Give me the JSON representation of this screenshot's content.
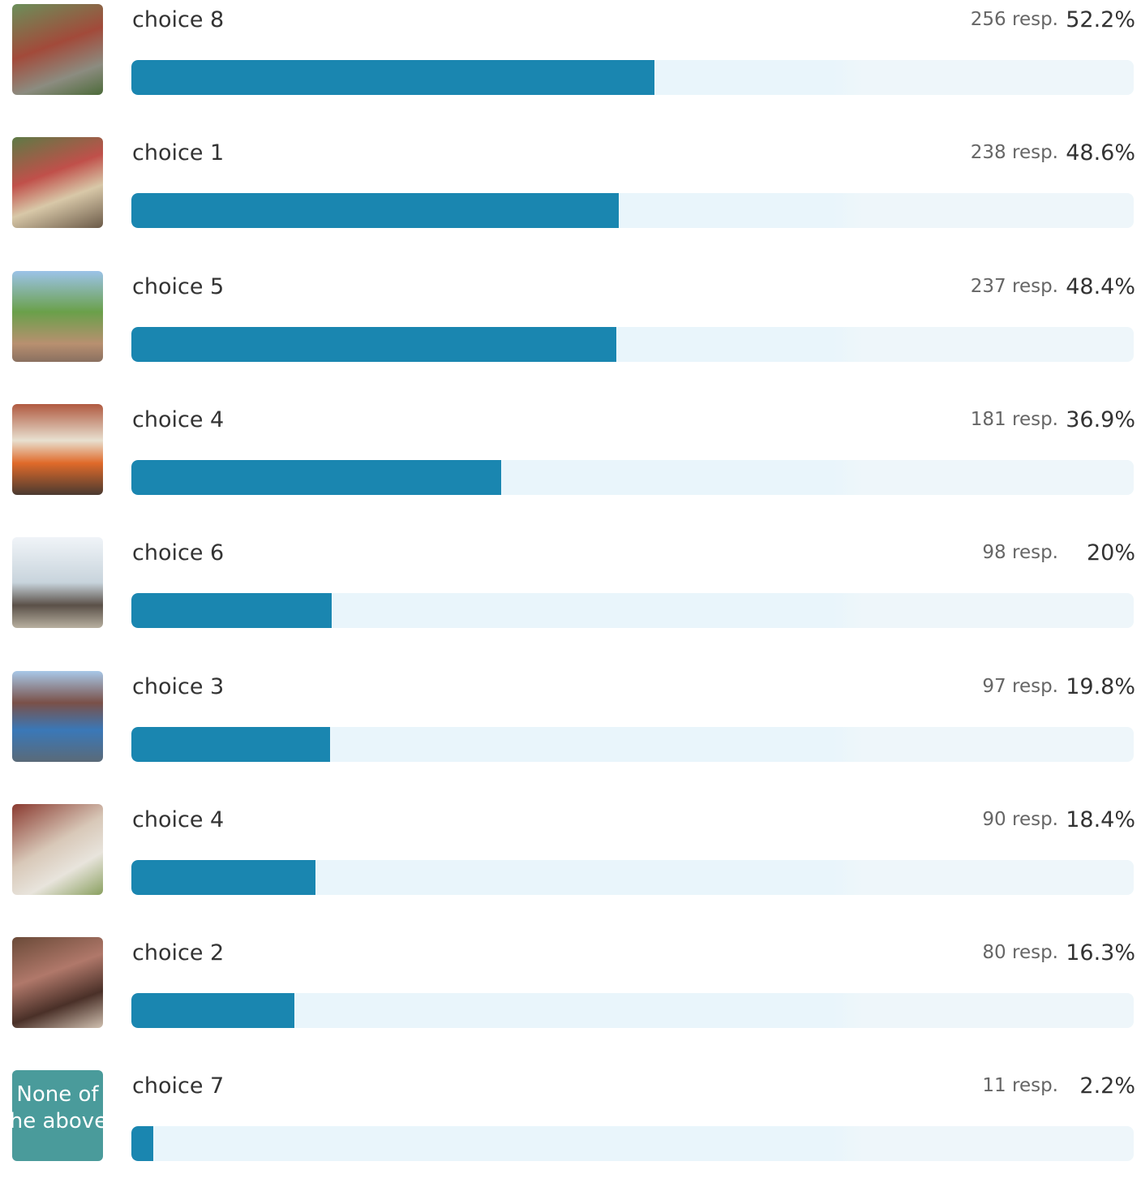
{
  "xlim": [
    0,
    100
  ],
  "items": [
    {
      "label": "choice 8",
      "responses": "256 resp.",
      "percent": 52.2,
      "percent_label": "52.2%"
    },
    {
      "label": "choice 1",
      "responses": "238 resp.",
      "percent": 48.6,
      "percent_label": "48.6%"
    },
    {
      "label": "choice 5",
      "responses": "237 resp.",
      "percent": 48.4,
      "percent_label": "48.4%"
    },
    {
      "label": "choice 4",
      "responses": "181 resp.",
      "percent": 36.9,
      "percent_label": "36.9%"
    },
    {
      "label": "choice 6",
      "responses": "98 resp.",
      "percent": 20,
      "percent_label": "20%"
    },
    {
      "label": "choice 3",
      "responses": "97 resp.",
      "percent": 19.8,
      "percent_label": "19.8%"
    },
    {
      "label": "choice 4",
      "responses": "90 resp.",
      "percent": 18.4,
      "percent_label": "18.4%"
    },
    {
      "label": "choice 2",
      "responses": "80 resp.",
      "percent": 16.3,
      "percent_label": "16.3%"
    },
    {
      "label": "choice 7",
      "responses": "11 resp.",
      "percent": 2.2,
      "percent_label": "2.2%",
      "image_text": "None of the above."
    }
  ]
}
